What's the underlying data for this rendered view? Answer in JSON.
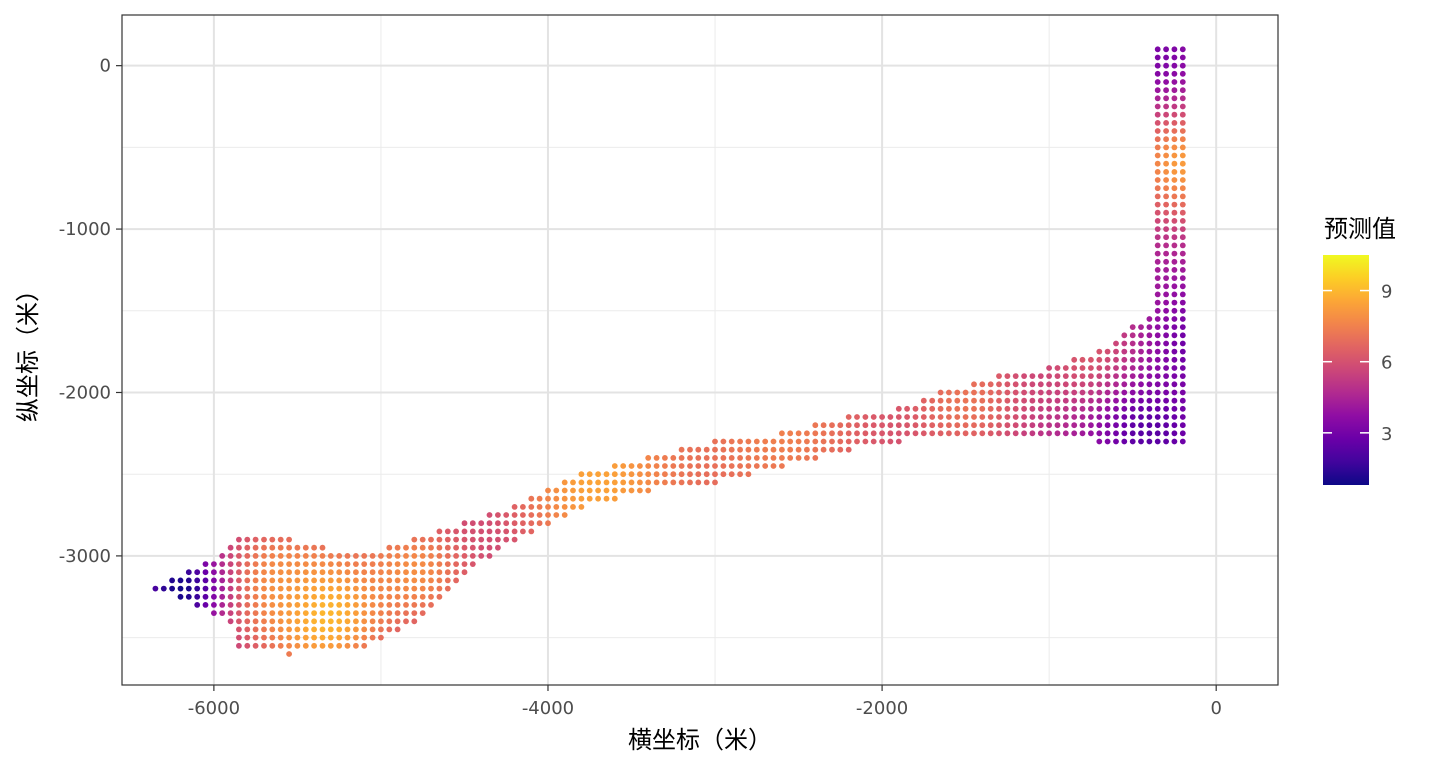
{
  "chart_data": {
    "type": "scatter",
    "title": "",
    "xlabel": "横坐标（米）",
    "ylabel": "纵坐标（米）",
    "xlim": [
      -6550,
      370
    ],
    "ylim": [
      -3790,
      310
    ],
    "x_ticks": [
      -6000,
      -4000,
      -2000,
      0
    ],
    "x_tick_labels": [
      "-6000",
      "-4000",
      "-2000",
      "0"
    ],
    "y_ticks": [
      0,
      -1000,
      -2000,
      -3000
    ],
    "y_tick_labels": [
      "0",
      "-1000",
      "-2000",
      "-3000"
    ],
    "grid": true,
    "grid_spacing": 50,
    "color_scale": {
      "name": "预测值",
      "palette": "plasma",
      "min": 0.8,
      "max": 10.5,
      "ticks": [
        3,
        6,
        9
      ],
      "tick_labels": [
        "3",
        "6",
        "9"
      ],
      "low_color": "#0d0887",
      "high_color": "#f0f921"
    },
    "legend_position": "right",
    "region_left_x": [
      -6350,
      -5900,
      -5850,
      -5550,
      -5100,
      -4800,
      -4500,
      -4200,
      -3800,
      -3400,
      -3000,
      -2600,
      -2200,
      -1900,
      -1600,
      -1300,
      -1000,
      -700,
      -500,
      -350,
      -300,
      -300,
      -350
    ],
    "region_left_top_y": [
      -3200,
      -2950,
      -2900,
      -2900,
      -3000,
      -2900,
      -2800,
      -2700,
      -2500,
      -2400,
      -2300,
      -2250,
      -2150,
      -2100,
      -1980,
      -1900,
      -1850,
      -1750,
      -1600,
      -1500,
      -1000,
      -500,
      130
    ],
    "region_left_bottom_y": [
      -3200,
      -3400,
      -3550,
      -3600,
      -3550,
      -3400,
      -3100,
      -2900,
      -2700,
      -2600,
      -2550,
      -2450,
      -2350,
      -2300,
      -2250,
      -2250,
      -2250,
      -2300,
      -2300,
      -2300,
      -2300,
      -2300,
      -2300
    ],
    "region_right_x": [
      -350,
      -100,
      0,
      60,
      60,
      20,
      -50,
      -100,
      -150,
      -160
    ],
    "region_right_top_y": [
      130,
      130,
      80,
      0,
      -800,
      -1200,
      -1500,
      -1800,
      -2000,
      -2200
    ],
    "region_right_bottom_y": [
      -2300,
      -2300,
      -2300,
      -2300,
      -2300,
      -2300,
      -2300,
      -2300,
      -2300,
      -2300
    ],
    "hotspots": [
      {
        "x": -5350,
        "y": -3350,
        "value": 10.3,
        "spread": 420
      },
      {
        "x": -5650,
        "y": -3150,
        "value": 8.2,
        "spread": 380
      },
      {
        "x": -4800,
        "y": -3100,
        "value": 8.4,
        "spread": 380
      },
      {
        "x": -3700,
        "y": -2550,
        "value": 9.3,
        "spread": 650
      },
      {
        "x": -2600,
        "y": -2250,
        "value": 8.0,
        "spread": 750
      },
      {
        "x": -1500,
        "y": -2050,
        "value": 7.6,
        "spread": 420
      },
      {
        "x": -700,
        "y": -1800,
        "value": 7.0,
        "spread": 380
      },
      {
        "x": -200,
        "y": -600,
        "value": 9.0,
        "spread": 380
      }
    ],
    "low_zones": [
      {
        "x": -6200,
        "y": -3200,
        "value": 0.9,
        "spread": 250
      },
      {
        "x": -350,
        "y": 80,
        "value": 3.2,
        "spread": 300
      },
      {
        "x": -100,
        "y": -1700,
        "value": 2.8,
        "spread": 350
      },
      {
        "x": -400,
        "y": -2250,
        "value": 2.3,
        "spread": 350
      }
    ],
    "base_value": 4.2
  }
}
